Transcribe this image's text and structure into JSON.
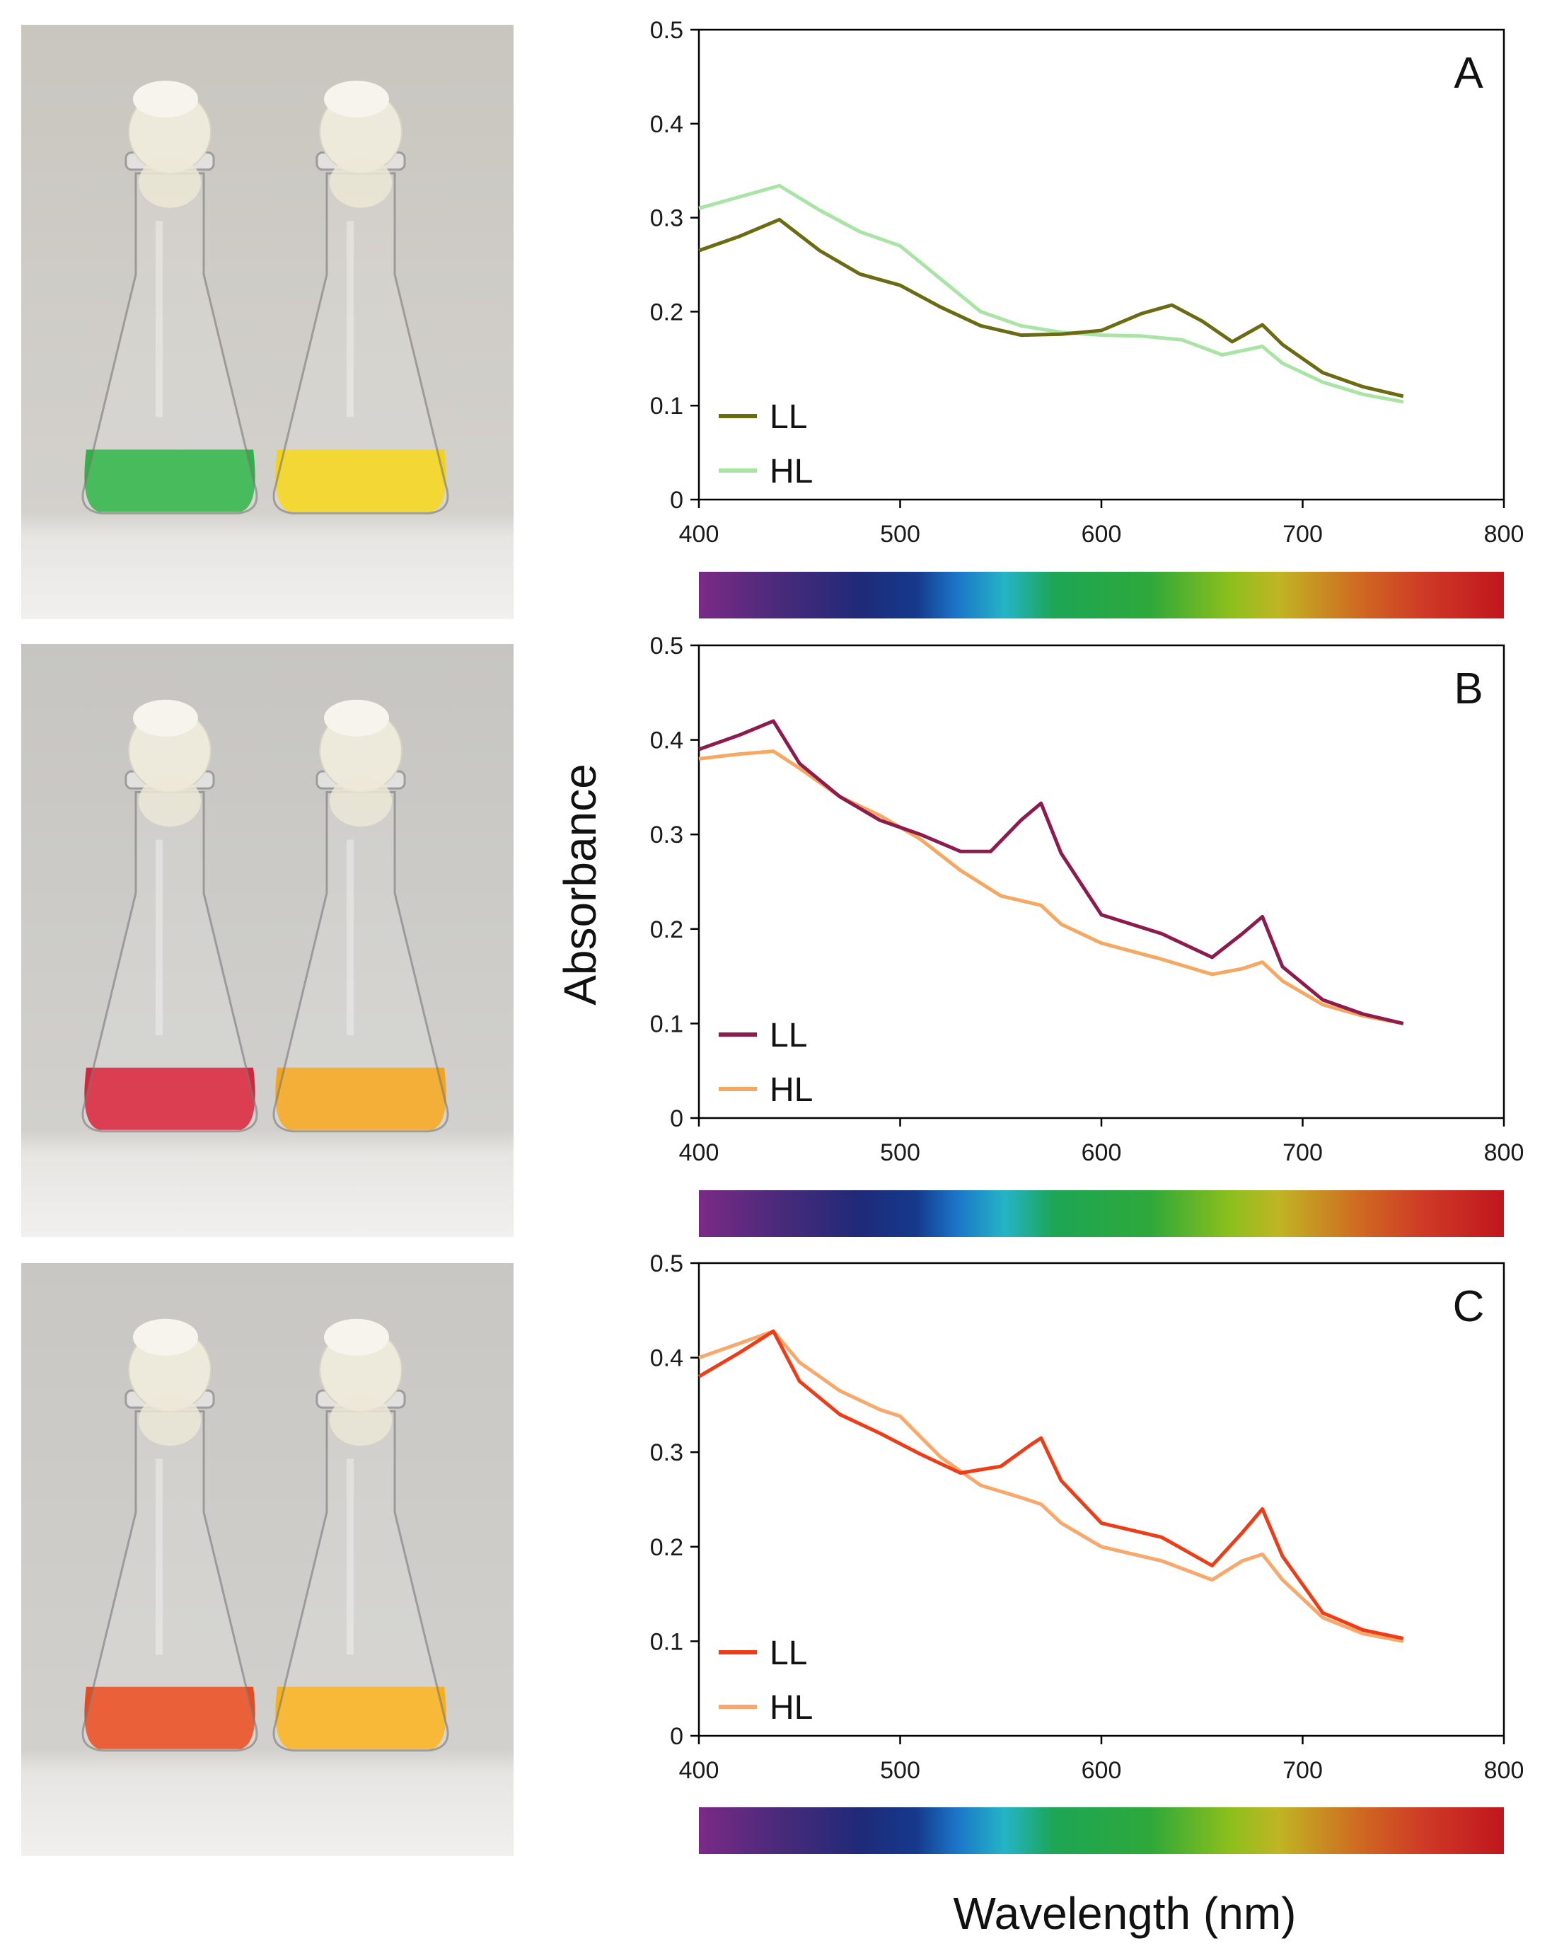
{
  "figure": {
    "ylabel": "Absorbance",
    "xlabel": "Wavelength (nm)"
  },
  "photos": [
    {
      "name": "photo-a",
      "liquid_colors": [
        "#2fb246",
        "#f2d21a"
      ]
    },
    {
      "name": "photo-b",
      "liquid_colors": [
        "#d6243a",
        "#f2a41c"
      ]
    },
    {
      "name": "photo-c",
      "liquid_colors": [
        "#e84a1e",
        "#f6b01c"
      ]
    }
  ],
  "chart_data": [
    {
      "type": "line",
      "panel": "A",
      "xlim": [
        400,
        800
      ],
      "ylim": [
        0,
        0.5
      ],
      "xticks": [
        400,
        500,
        600,
        700,
        800
      ],
      "yticks": [
        0,
        0.1,
        0.2,
        0.3,
        0.4,
        0.5
      ],
      "series": [
        {
          "name": "LL",
          "color": "#6b6b12",
          "x": [
            400,
            420,
            440,
            460,
            480,
            500,
            520,
            540,
            560,
            580,
            600,
            620,
            635,
            650,
            665,
            680,
            690,
            710,
            730,
            750
          ],
          "y": [
            0.265,
            0.28,
            0.298,
            0.265,
            0.24,
            0.228,
            0.205,
            0.185,
            0.175,
            0.176,
            0.18,
            0.198,
            0.207,
            0.19,
            0.168,
            0.186,
            0.165,
            0.135,
            0.12,
            0.11
          ]
        },
        {
          "name": "HL",
          "color": "#a8e4a4",
          "x": [
            400,
            420,
            440,
            460,
            480,
            500,
            520,
            540,
            560,
            580,
            600,
            620,
            640,
            660,
            680,
            690,
            710,
            730,
            750
          ],
          "y": [
            0.31,
            0.322,
            0.334,
            0.308,
            0.285,
            0.27,
            0.235,
            0.2,
            0.185,
            0.178,
            0.175,
            0.174,
            0.17,
            0.154,
            0.163,
            0.145,
            0.125,
            0.112,
            0.104
          ]
        }
      ]
    },
    {
      "type": "line",
      "panel": "B",
      "xlim": [
        400,
        800
      ],
      "ylim": [
        0,
        0.5
      ],
      "xticks": [
        400,
        500,
        600,
        700,
        800
      ],
      "yticks": [
        0,
        0.1,
        0.2,
        0.3,
        0.4,
        0.5
      ],
      "series": [
        {
          "name": "LL",
          "color": "#8e1b4e",
          "x": [
            400,
            420,
            437,
            450,
            470,
            490,
            510,
            530,
            545,
            560,
            570,
            580,
            600,
            630,
            655,
            670,
            680,
            690,
            710,
            730,
            750
          ],
          "y": [
            0.39,
            0.405,
            0.42,
            0.375,
            0.34,
            0.315,
            0.3,
            0.282,
            0.282,
            0.315,
            0.333,
            0.28,
            0.215,
            0.195,
            0.17,
            0.195,
            0.213,
            0.16,
            0.125,
            0.11,
            0.1
          ]
        },
        {
          "name": "HL",
          "color": "#f6a860",
          "x": [
            400,
            420,
            437,
            450,
            470,
            490,
            510,
            530,
            550,
            570,
            580,
            600,
            630,
            655,
            670,
            680,
            690,
            710,
            730,
            750
          ],
          "y": [
            0.38,
            0.385,
            0.388,
            0.37,
            0.34,
            0.32,
            0.295,
            0.262,
            0.235,
            0.225,
            0.205,
            0.185,
            0.168,
            0.152,
            0.158,
            0.165,
            0.145,
            0.12,
            0.108,
            0.1
          ]
        }
      ]
    },
    {
      "type": "line",
      "panel": "C",
      "xlim": [
        400,
        800
      ],
      "ylim": [
        0,
        0.5
      ],
      "xticks": [
        400,
        500,
        600,
        700,
        800
      ],
      "yticks": [
        0,
        0.1,
        0.2,
        0.3,
        0.4,
        0.5
      ],
      "series": [
        {
          "name": "LL",
          "color": "#f03c16",
          "x": [
            400,
            420,
            437,
            450,
            470,
            490,
            510,
            530,
            550,
            565,
            570,
            580,
            600,
            630,
            655,
            670,
            680,
            690,
            710,
            730,
            750
          ],
          "y": [
            0.38,
            0.405,
            0.428,
            0.375,
            0.34,
            0.32,
            0.298,
            0.278,
            0.285,
            0.308,
            0.315,
            0.27,
            0.225,
            0.21,
            0.18,
            0.215,
            0.24,
            0.19,
            0.13,
            0.112,
            0.103
          ]
        },
        {
          "name": "HL",
          "color": "#f9a76a",
          "x": [
            400,
            420,
            437,
            450,
            470,
            490,
            500,
            520,
            540,
            560,
            570,
            580,
            600,
            630,
            655,
            670,
            680,
            690,
            710,
            730,
            750
          ],
          "y": [
            0.4,
            0.415,
            0.428,
            0.395,
            0.365,
            0.345,
            0.338,
            0.295,
            0.265,
            0.252,
            0.245,
            0.225,
            0.2,
            0.185,
            0.165,
            0.185,
            0.192,
            0.165,
            0.125,
            0.108,
            0.1
          ]
        }
      ]
    }
  ]
}
